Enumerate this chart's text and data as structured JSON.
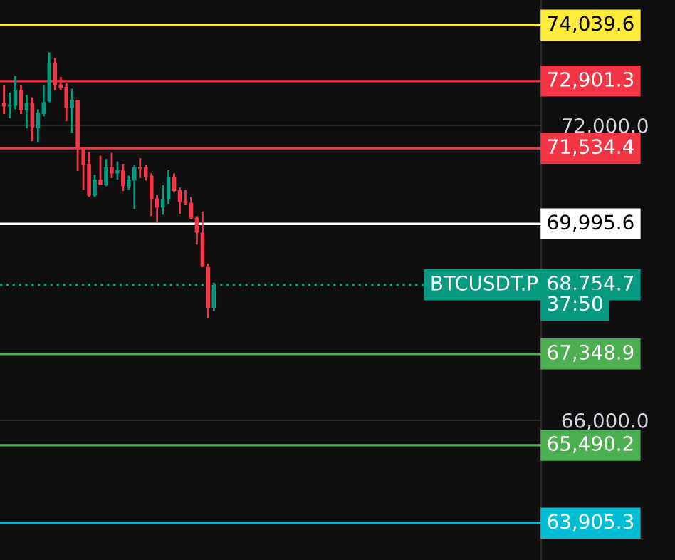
{
  "chart_data": {
    "type": "candlestick",
    "categories": [
      null,
      null,
      null,
      null,
      null,
      null,
      null,
      null,
      null,
      null,
      null,
      null,
      null,
      null,
      null,
      null,
      null,
      null,
      null,
      null,
      null,
      null,
      null,
      null,
      null,
      null,
      null,
      null,
      null,
      null,
      null,
      null,
      null,
      null,
      null,
      null,
      null,
      null,
      null,
      null,
      null,
      null,
      null,
      null,
      null,
      null,
      null,
      null,
      null,
      null,
      null,
      null,
      null,
      null,
      null,
      null,
      null,
      null,
      null,
      null,
      null,
      null,
      null,
      null,
      null,
      null,
      null,
      null,
      null,
      null,
      null,
      null,
      null,
      null,
      null,
      null,
      null,
      null,
      null,
      null,
      null,
      null,
      null,
      null,
      null,
      null,
      null,
      null,
      null,
      null,
      null,
      null,
      null,
      null,
      null
    ],
    "ohlc": [
      [
        72464,
        72812,
        72232,
        72386
      ],
      [
        72386,
        72667,
        72145,
        72426
      ],
      [
        72397,
        73006,
        72328,
        72716
      ],
      [
        72716,
        72812,
        72232,
        72310
      ],
      [
        72310,
        72618,
        71942,
        72455
      ],
      [
        72455,
        72571,
        71681,
        71962
      ],
      [
        71942,
        72328,
        71652,
        72261
      ],
      [
        72232,
        72812,
        72183,
        72473
      ],
      [
        72493,
        73488,
        72473,
        73276
      ],
      [
        73276,
        73363,
        72716,
        72812
      ],
      [
        72832,
        72986,
        72716,
        72763
      ],
      [
        72783,
        72861,
        72087,
        72357
      ],
      [
        72357,
        72745,
        71846,
        72522
      ],
      [
        72522,
        72522,
        71072,
        71556
      ],
      [
        71556,
        71556,
        70686,
        71197
      ],
      [
        71217,
        71458,
        70542,
        70571
      ],
      [
        70571,
        70994,
        70542,
        70898
      ],
      [
        70898,
        71382,
        70782,
        70782
      ],
      [
        70782,
        71313,
        70762,
        71150
      ],
      [
        71150,
        71440,
        70927,
        71023
      ],
      [
        71023,
        71266,
        70898,
        71092
      ],
      [
        71092,
        71217,
        70666,
        70762
      ],
      [
        70762,
        70977,
        70686,
        70898
      ],
      [
        70878,
        71188,
        70298,
        71150
      ],
      [
        71150,
        71333,
        70927,
        71121
      ],
      [
        71150,
        71188,
        70878,
        70956
      ],
      [
        70977,
        71023,
        70153,
        70492
      ],
      [
        70513,
        70588,
        70028,
        70327
      ],
      [
        70327,
        70782,
        70182,
        70492
      ],
      [
        70492,
        71092,
        70397,
        70956
      ],
      [
        70956,
        71023,
        70637,
        70666
      ],
      [
        70686,
        70733,
        70202,
        70443
      ],
      [
        70463,
        70686,
        70376,
        70414
      ],
      [
        70426,
        70542,
        70086,
        70106
      ],
      [
        70124,
        70153,
        69573,
        69816
      ],
      [
        69816,
        70251,
        69120,
        69120
      ],
      [
        69120,
        69187,
        68076,
        68288
      ],
      [
        68288,
        68801,
        68221,
        68754.7
      ],
      null,
      null,
      null,
      null,
      null,
      null,
      null,
      null,
      null,
      null,
      null,
      null,
      null,
      null,
      null,
      null,
      null,
      null,
      null,
      null,
      null,
      null,
      null,
      null,
      null,
      null,
      null,
      null,
      null,
      null,
      null,
      null,
      null,
      null,
      null,
      null,
      null,
      null,
      null,
      null,
      null,
      null,
      null,
      null,
      null,
      null,
      null,
      null,
      null,
      null,
      null,
      null,
      null,
      null,
      null,
      null,
      null
    ],
    "colors": [
      "#f23645",
      "#089981",
      "#089981",
      "#f23645",
      "#089981",
      "#f23645",
      "#089981",
      "#089981",
      "#089981",
      "#f23645",
      "#f23645",
      "#f23645",
      "#089981",
      "#f23645",
      "#f23645",
      "#f23645",
      "#089981",
      "#f23645",
      "#089981",
      "#f23645",
      "#089981",
      "#f23645",
      "#089981",
      "#089981",
      "#f23645",
      "#f23645",
      "#f23645",
      "#f23645",
      "#089981",
      "#089981",
      "#f23645",
      "#f23645",
      "#f23645",
      "#f23645",
      "#f23645",
      "#f23645",
      "#f23645",
      "#089981",
      null,
      null,
      null,
      null,
      null,
      null,
      null,
      null,
      null,
      null,
      null,
      null,
      null,
      null,
      null,
      null,
      null,
      null,
      null,
      null,
      null,
      null,
      null,
      null,
      null,
      null,
      null,
      null,
      null,
      null,
      null,
      null,
      null,
      null,
      null,
      null,
      null,
      null,
      null,
      null,
      null,
      null,
      null,
      null,
      null,
      null,
      null,
      null,
      null,
      null,
      null,
      null,
      null,
      null,
      null,
      null,
      null
    ],
    "ylim": [
      63155,
      74552
    ],
    "yticks": [
      {
        "value": 72000,
        "label": "72,000.0"
      },
      {
        "value": 66000,
        "label": "66,000.0"
      }
    ],
    "grid": "y",
    "ref_lines": [
      {
        "axis": "y",
        "value": 74039.6,
        "label": "74,039.6",
        "color": "#ffeb3b"
      },
      {
        "axis": "y",
        "value": 72901.3,
        "label": "72,901.3",
        "color": "#f23645"
      },
      {
        "axis": "y",
        "value": 71534.4,
        "label": "71,534.4",
        "color": "#f23645"
      },
      {
        "axis": "y",
        "value": 69995.6,
        "label": "69,995.6",
        "color": "#ffffff"
      },
      {
        "axis": "y",
        "value": 68754.7,
        "label": "68,754.7",
        "color": "#089981",
        "line_style": "dotted"
      },
      {
        "axis": "y",
        "value": 67348.9,
        "label": "67,348.9",
        "color": "#4caf50"
      },
      {
        "axis": "y",
        "value": 65490.2,
        "label": "65,490.2",
        "color": "#4caf50"
      },
      {
        "axis": "y",
        "value": 63905.3,
        "label": "63,905.3",
        "color": "#00bcd4"
      }
    ],
    "annotations": [
      {
        "text": "BTCUSDT.P",
        "y": 68754.7
      },
      "37:50"
    ]
  }
}
